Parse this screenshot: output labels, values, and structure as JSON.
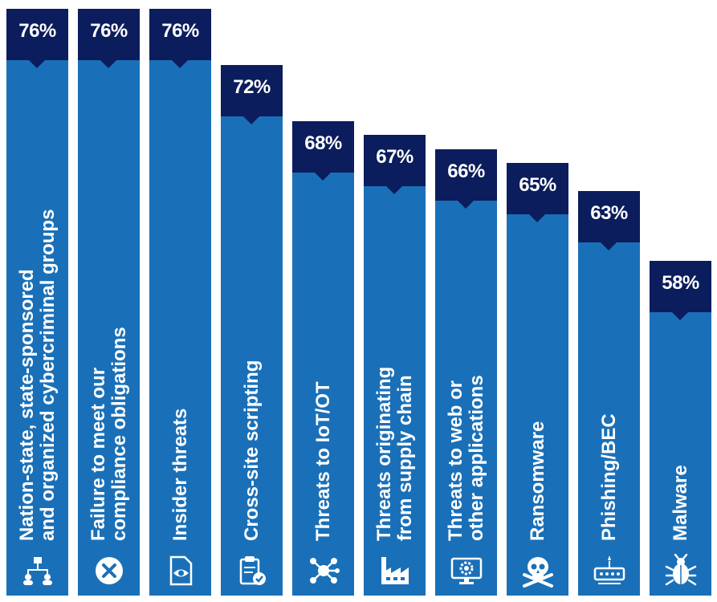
{
  "chart_data": {
    "type": "bar",
    "orientation": "vertical",
    "categories": [
      [
        "Nation-state, state-sponsored",
        "and organized cybercriminal groups"
      ],
      [
        "Failure to meet our",
        "compliance obligations"
      ],
      [
        "Insider threats"
      ],
      [
        "Cross-site scripting"
      ],
      [
        "Threats to IoT/OT"
      ],
      [
        "Threats originating",
        "from supply chain"
      ],
      [
        "Threats to web or",
        "other applications"
      ],
      [
        "Ransomware"
      ],
      [
        "Phishing/BEC"
      ],
      [
        "Malware"
      ]
    ],
    "values": [
      76,
      76,
      76,
      72,
      68,
      67,
      66,
      65,
      63,
      58
    ],
    "value_labels": [
      "76%",
      "76%",
      "76%",
      "72%",
      "68%",
      "67%",
      "66%",
      "65%",
      "63%",
      "58%"
    ],
    "icons": [
      "org-chart-icon",
      "x-circle-icon",
      "eye-document-icon",
      "clipboard-check-icon",
      "network-hub-icon",
      "factory-icon",
      "monitor-gear-icon",
      "skull-crossbones-icon",
      "password-alert-icon",
      "bug-icon"
    ],
    "colors": {
      "bar": "#1a70b8",
      "cap": "#0b1d5c",
      "text": "#ffffff"
    }
  }
}
